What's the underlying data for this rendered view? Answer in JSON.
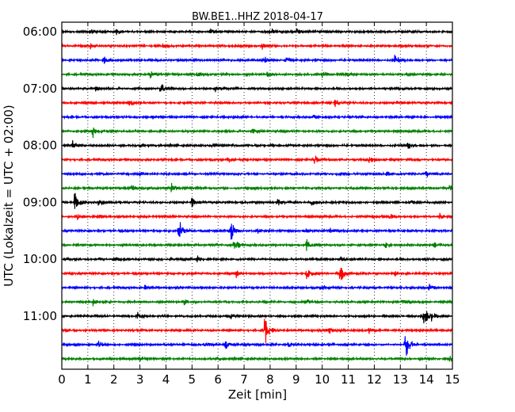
{
  "chart_data": {
    "type": "line",
    "title": "BW.BE1..HHZ 2018-04-17",
    "xlabel": "Zeit  [min]",
    "ylabel": "UTC (Lokalzeit = UTC + 02:00)",
    "xlim": [
      0,
      15
    ],
    "x_ticks": [
      "0",
      "1",
      "2",
      "3",
      "4",
      "5",
      "6",
      "7",
      "8",
      "9",
      "10",
      "11",
      "12",
      "13",
      "14",
      "15"
    ],
    "y_ticks": [
      "06:00",
      "07:00",
      "08:00",
      "09:00",
      "10:00",
      "11:00"
    ],
    "grid": "vertical dotted",
    "trace_interval_min": 15,
    "color_cycle": [
      "#000000",
      "#ff0000",
      "#0000ff",
      "#008000"
    ],
    "traces": [
      {
        "start": "06:00",
        "events": [
          [
            1.1,
            0.3
          ],
          [
            2.1,
            0.3
          ],
          [
            5.7,
            0.4
          ],
          [
            8.0,
            0.5
          ],
          [
            9.0,
            0.4
          ]
        ]
      },
      {
        "start": "06:15",
        "events": [
          [
            1.1,
            0.3
          ],
          [
            3.9,
            0.3
          ],
          [
            7.7,
            0.3
          ]
        ]
      },
      {
        "start": "06:30",
        "events": [
          [
            1.6,
            0.5
          ],
          [
            7.8,
            0.4
          ],
          [
            12.8,
            0.7
          ],
          [
            8.6,
            0.3
          ]
        ]
      },
      {
        "start": "06:45",
        "events": [
          [
            3.4,
            0.4
          ],
          [
            5.2,
            0.3
          ],
          [
            10.0,
            0.5
          ],
          [
            10.9,
            0.4
          ],
          [
            7.9,
            0.3
          ]
        ]
      },
      {
        "start": "07:00",
        "events": [
          [
            3.8,
            0.6
          ],
          [
            5.9,
            0.4
          ],
          [
            1.3,
            0.3
          ]
        ]
      },
      {
        "start": "07:15",
        "events": [
          [
            2.6,
            0.4
          ],
          [
            10.5,
            0.5
          ],
          [
            12.9,
            0.3
          ]
        ]
      },
      {
        "start": "07:30",
        "events": [
          [
            3.5,
            0.2
          ],
          [
            9.7,
            0.3
          ]
        ]
      },
      {
        "start": "07:45",
        "events": [
          [
            1.2,
            0.6
          ],
          [
            7.3,
            0.3
          ]
        ]
      },
      {
        "start": "08:00",
        "events": [
          [
            0.4,
            0.6
          ],
          [
            3.0,
            0.3
          ],
          [
            13.3,
            0.4
          ],
          [
            5.8,
            0.2
          ]
        ]
      },
      {
        "start": "08:15",
        "events": [
          [
            6.4,
            0.3
          ],
          [
            9.7,
            0.5
          ],
          [
            11.8,
            0.3
          ]
        ]
      },
      {
        "start": "08:30",
        "events": [
          [
            3.0,
            0.3
          ],
          [
            14.0,
            0.4
          ],
          [
            12.5,
            0.3
          ]
        ]
      },
      {
        "start": "08:45",
        "events": [
          [
            4.2,
            0.6
          ],
          [
            14.9,
            0.4
          ],
          [
            2.7,
            0.3
          ],
          [
            7.3,
            0.3
          ]
        ]
      },
      {
        "start": "09:00",
        "events": [
          [
            0.5,
            1.5
          ],
          [
            1.4,
            0.8
          ],
          [
            5.0,
            0.6
          ],
          [
            8.3,
            0.5
          ],
          [
            13.4,
            0.4
          ],
          [
            9.6,
            0.3
          ]
        ]
      },
      {
        "start": "09:15",
        "events": [
          [
            1.4,
            0.4
          ],
          [
            12.6,
            0.4
          ],
          [
            14.5,
            0.4
          ],
          [
            0.6,
            0.5
          ]
        ]
      },
      {
        "start": "09:30",
        "events": [
          [
            4.5,
            1.2
          ],
          [
            6.5,
            1.4
          ],
          [
            10.3,
            0.5
          ],
          [
            9.3,
            0.4
          ],
          [
            7.5,
            0.3
          ]
        ]
      },
      {
        "start": "09:45",
        "events": [
          [
            6.6,
            1.3
          ],
          [
            9.4,
            0.9
          ],
          [
            12.4,
            0.4
          ],
          [
            14.3,
            0.3
          ]
        ]
      },
      {
        "start": "10:00",
        "events": [
          [
            2.0,
            0.3
          ],
          [
            5.2,
            0.4
          ],
          [
            10.7,
            0.3
          ],
          [
            13.9,
            0.3
          ]
        ]
      },
      {
        "start": "10:15",
        "events": [
          [
            6.7,
            0.5
          ],
          [
            9.4,
            1.0
          ],
          [
            10.7,
            1.2
          ],
          [
            12.8,
            0.3
          ]
        ]
      },
      {
        "start": "10:30",
        "events": [
          [
            3.2,
            0.3
          ],
          [
            10.0,
            0.3
          ],
          [
            14.1,
            0.5
          ]
        ]
      },
      {
        "start": "10:45",
        "events": [
          [
            1.2,
            0.4
          ],
          [
            4.7,
            0.3
          ],
          [
            9.4,
            0.3
          ],
          [
            13.1,
            0.3
          ]
        ]
      },
      {
        "start": "11:00",
        "events": [
          [
            2.9,
            0.4
          ],
          [
            6.5,
            0.3
          ],
          [
            13.9,
            1.4
          ],
          [
            14.2,
            0.6
          ]
        ]
      },
      {
        "start": "11:15",
        "events": [
          [
            7.8,
            1.8
          ],
          [
            10.2,
            0.7
          ],
          [
            11.8,
            0.3
          ]
        ]
      },
      {
        "start": "11:30",
        "events": [
          [
            1.4,
            0.5
          ],
          [
            5.5,
            0.4
          ],
          [
            6.3,
            0.5
          ],
          [
            8.7,
            0.3
          ],
          [
            13.2,
            2.2
          ]
        ]
      },
      {
        "start": "11:45",
        "events": [
          [
            3.0,
            0.3
          ],
          [
            6.0,
            0.3
          ],
          [
            14.9,
            0.5
          ]
        ]
      }
    ]
  }
}
